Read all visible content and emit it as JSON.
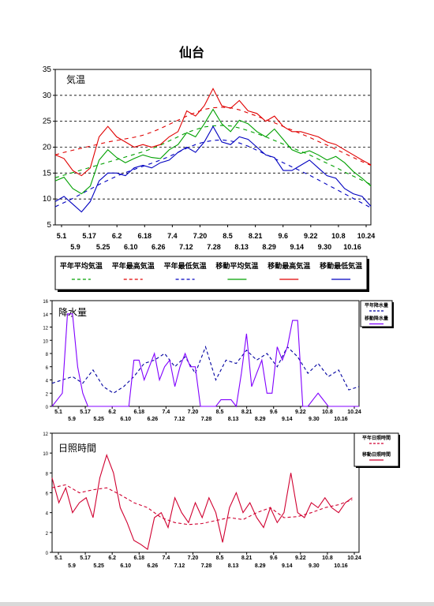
{
  "page_title": "仙台",
  "chart_data": [
    {
      "type": "line",
      "inner_label": "気温",
      "ylim": [
        5,
        35
      ],
      "yticks": [
        5,
        10,
        15,
        20,
        25,
        30,
        35
      ],
      "grid_y": [
        10,
        15,
        20,
        25,
        30
      ],
      "x_labels_top": [
        "5.1",
        "5.17",
        "6.2",
        "6.18",
        "7.4",
        "7.20",
        "8.5",
        "8.21",
        "9.6",
        "9.22",
        "10.8",
        "10.24"
      ],
      "x_labels_bottom": [
        "5.9",
        "5.25",
        "6.10",
        "6.26",
        "7.12",
        "7.28",
        "8.13",
        "8.29",
        "9.14",
        "9.30",
        "10.16"
      ],
      "legend": [
        "平年平均気温",
        "平年最高気温",
        "平年最低気温",
        "移動平均気温",
        "移動最高気温",
        "移動最低気温"
      ],
      "legend_position": "below",
      "series_x": [
        0,
        5,
        10,
        15,
        20,
        25,
        30,
        35,
        40,
        45,
        50,
        55,
        60,
        65,
        70,
        75,
        80,
        85,
        90,
        95,
        100,
        105,
        110,
        115,
        120,
        125,
        130,
        135,
        140,
        145,
        150,
        155,
        160,
        165,
        170,
        175,
        180
      ],
      "x_domain": [
        0,
        180
      ],
      "series": [
        {
          "name": "平年平均気温",
          "color": "#00a000",
          "dash": "5,5",
          "values": [
            14.1,
            14.6,
            15.1,
            15.6,
            16.1,
            16.6,
            17.1,
            17.6,
            18.1,
            18.6,
            19.1,
            19.7,
            20.4,
            21.2,
            22.0,
            22.8,
            23.4,
            23.9,
            24.1,
            24.2,
            24.1,
            23.7,
            23.2,
            22.6,
            22.0,
            21.3,
            20.6,
            19.9,
            19.2,
            18.5,
            17.7,
            16.9,
            16.1,
            15.2,
            14.4,
            13.6,
            12.8
          ]
        },
        {
          "name": "平年最高気温",
          "color": "#e00000",
          "dash": "5,5",
          "values": [
            18.5,
            19.0,
            19.4,
            19.8,
            20.2,
            20.6,
            21.0,
            21.3,
            21.6,
            21.9,
            22.3,
            22.9,
            23.6,
            24.4,
            25.2,
            26.0,
            26.7,
            27.3,
            27.6,
            27.7,
            27.6,
            27.2,
            26.6,
            26.0,
            25.3,
            24.7,
            24.0,
            23.3,
            22.6,
            21.9,
            21.1,
            20.4,
            19.6,
            18.8,
            18.0,
            17.2,
            16.5
          ]
        },
        {
          "name": "平年最低気温",
          "color": "#0000c0",
          "dash": "5,5",
          "values": [
            8.5,
            9.3,
            10.1,
            11.0,
            11.9,
            12.8,
            13.6,
            14.4,
            15.1,
            15.7,
            16.3,
            16.9,
            17.5,
            18.2,
            19.0,
            19.8,
            20.5,
            21.0,
            21.3,
            21.4,
            21.2,
            20.8,
            20.2,
            19.4,
            18.6,
            17.8,
            17.0,
            16.2,
            15.4,
            14.6,
            13.7,
            12.8,
            11.9,
            11.0,
            10.1,
            9.2,
            8.3
          ]
        },
        {
          "name": "移動平均気温",
          "color": "#00a000",
          "dash": "",
          "values": [
            13.5,
            14.2,
            12.0,
            11.0,
            12.5,
            17.5,
            19.5,
            18.0,
            17.0,
            17.8,
            18.5,
            18.0,
            17.8,
            19.5,
            20.5,
            22.8,
            22.0,
            24.5,
            27.3,
            24.5,
            23.0,
            25.2,
            24.5,
            23.0,
            22.0,
            23.5,
            21.5,
            19.5,
            18.8,
            19.3,
            18.5,
            17.5,
            18.2,
            17.0,
            15.3,
            14.0,
            12.5
          ]
        },
        {
          "name": "移動最高気温",
          "color": "#e00000",
          "dash": "",
          "values": [
            18.5,
            17.8,
            15.5,
            14.5,
            16.0,
            22.0,
            24.0,
            22.0,
            21.0,
            20.0,
            20.5,
            20.0,
            20.5,
            22.0,
            23.0,
            27.0,
            26.0,
            28.0,
            31.3,
            28.0,
            27.5,
            29.0,
            27.0,
            26.5,
            25.0,
            26.0,
            24.0,
            23.0,
            23.0,
            22.5,
            22.0,
            21.0,
            20.5,
            19.5,
            18.5,
            17.5,
            16.6
          ]
        },
        {
          "name": "移動最低気温",
          "color": "#0000c0",
          "dash": "",
          "values": [
            9.5,
            10.5,
            9.0,
            7.5,
            9.5,
            13.5,
            15.0,
            15.0,
            14.5,
            16.0,
            16.5,
            16.0,
            17.0,
            17.5,
            19.0,
            20.0,
            19.0,
            21.0,
            24.0,
            21.0,
            20.5,
            22.0,
            21.5,
            20.0,
            18.5,
            18.0,
            15.5,
            15.5,
            16.5,
            17.5,
            16.0,
            14.5,
            14.0,
            12.0,
            11.0,
            10.5,
            8.6
          ]
        }
      ]
    },
    {
      "type": "line",
      "inner_label": "降水量",
      "ylim": [
        0,
        16
      ],
      "yticks": [
        0,
        2,
        4,
        6,
        8,
        10,
        12,
        14,
        16
      ],
      "x_labels_top": [
        "5.1",
        "5.17",
        "6.2",
        "6.18",
        "7.4",
        "7.20",
        "8.5",
        "8.21",
        "9.6",
        "9.22",
        "10.8",
        "10.24"
      ],
      "x_labels_bottom": [
        "5.9",
        "5.25",
        "6.10",
        "6.26",
        "7.12",
        "7.28",
        "8.13",
        "8.29",
        "9.14",
        "9.30",
        "10.16"
      ],
      "legend": [
        "平年降水量",
        "移動降水量"
      ],
      "legend_position": "right",
      "x_domain": [
        0,
        180
      ],
      "series": [
        {
          "name": "平年降水量",
          "color": "#0000a0",
          "dash": "4,3",
          "x": [
            0,
            6,
            12,
            18,
            24,
            30,
            36,
            42,
            48,
            54,
            60,
            66,
            72,
            78,
            84,
            90,
            96,
            102,
            108,
            114,
            120,
            126,
            132,
            138,
            144,
            150,
            156,
            162,
            168,
            174,
            180
          ],
          "values": [
            3.5,
            4.0,
            4.5,
            3.5,
            5.5,
            3.0,
            2.0,
            3.0,
            4.5,
            6.5,
            7.0,
            8.0,
            6.0,
            7.5,
            5.0,
            9.0,
            4.0,
            7.0,
            6.5,
            8.5,
            7.0,
            8.0,
            6.0,
            9.0,
            7.5,
            5.0,
            6.5,
            4.5,
            5.5,
            2.5,
            3.0
          ]
        },
        {
          "name": "移動降水量",
          "color": "#8000ff",
          "dash": "",
          "x": [
            0,
            6,
            9,
            12,
            15,
            18,
            21,
            24,
            30,
            36,
            42,
            45,
            48,
            51,
            54,
            57,
            60,
            63,
            66,
            69,
            72,
            75,
            78,
            81,
            84,
            87,
            90,
            96,
            99,
            105,
            108,
            111,
            114,
            117,
            120,
            123,
            126,
            129,
            132,
            135,
            138,
            141,
            144,
            147,
            150,
            153,
            156,
            159,
            162,
            165,
            168,
            174,
            180
          ],
          "values": [
            0,
            2,
            14,
            14,
            6,
            2,
            0,
            0,
            0,
            0,
            0,
            0,
            7,
            7,
            4,
            6,
            8,
            4,
            6,
            7,
            3,
            6,
            8,
            6,
            6,
            0,
            0,
            0,
            1,
            1,
            0,
            5,
            11,
            3,
            5,
            7,
            2,
            2,
            9,
            7,
            9,
            13,
            13,
            0,
            0,
            1,
            2,
            1,
            0,
            0,
            0,
            0,
            0
          ]
        }
      ]
    },
    {
      "type": "line",
      "inner_label": "日照時間",
      "ylim": [
        0,
        12
      ],
      "yticks": [
        0,
        2,
        4,
        6,
        8,
        10,
        12
      ],
      "x_labels_top": [
        "5.1",
        "5.17",
        "6.2",
        "6.18",
        "7.4",
        "7.20",
        "8.5",
        "8.21",
        "9.6",
        "9.22",
        "10.8",
        "10.24"
      ],
      "x_labels_bottom": [
        "5.9",
        "5.25",
        "6.10",
        "6.26",
        "7.12",
        "7.28",
        "8.13",
        "8.29",
        "9.14",
        "9.30",
        "10.16"
      ],
      "legend": [
        "平年日照時間",
        "移動日照時間"
      ],
      "legend_position": "right",
      "x_domain": [
        0,
        180
      ],
      "series": [
        {
          "name": "平年日照時間",
          "color": "#d00030",
          "dash": "4,3",
          "x": [
            0,
            8,
            16,
            24,
            32,
            40,
            48,
            56,
            64,
            72,
            80,
            88,
            96,
            104,
            112,
            120,
            128,
            136,
            144,
            152,
            160,
            168,
            176
          ],
          "values": [
            6.5,
            6.8,
            6.0,
            6.3,
            6.5,
            5.8,
            5.0,
            4.5,
            3.5,
            3.0,
            2.8,
            2.9,
            3.2,
            3.5,
            3.3,
            4.0,
            4.5,
            3.5,
            3.6,
            4.0,
            4.5,
            4.8,
            5.3
          ]
        },
        {
          "name": "移動日照時間",
          "color": "#d00030",
          "dash": "",
          "x": [
            0,
            4,
            8,
            12,
            16,
            20,
            24,
            28,
            32,
            36,
            40,
            44,
            48,
            52,
            56,
            60,
            64,
            68,
            72,
            76,
            80,
            84,
            88,
            92,
            96,
            100,
            104,
            108,
            112,
            116,
            120,
            124,
            128,
            132,
            136,
            140,
            144,
            148,
            152,
            156,
            160,
            164,
            168,
            172,
            176
          ],
          "values": [
            7.5,
            5.0,
            6.5,
            4.0,
            5.0,
            5.5,
            3.5,
            7.5,
            9.8,
            8.0,
            4.5,
            3.0,
            1.2,
            0.8,
            0.3,
            3.5,
            4.0,
            2.5,
            5.5,
            4.0,
            3.0,
            5.0,
            3.5,
            5.5,
            4.0,
            1.0,
            4.5,
            6.0,
            4.0,
            5.0,
            3.5,
            2.5,
            4.5,
            3.0,
            4.0,
            8.0,
            4.0,
            3.5,
            5.0,
            4.5,
            5.5,
            4.5,
            4.0,
            5.0,
            5.5
          ]
        }
      ]
    }
  ]
}
